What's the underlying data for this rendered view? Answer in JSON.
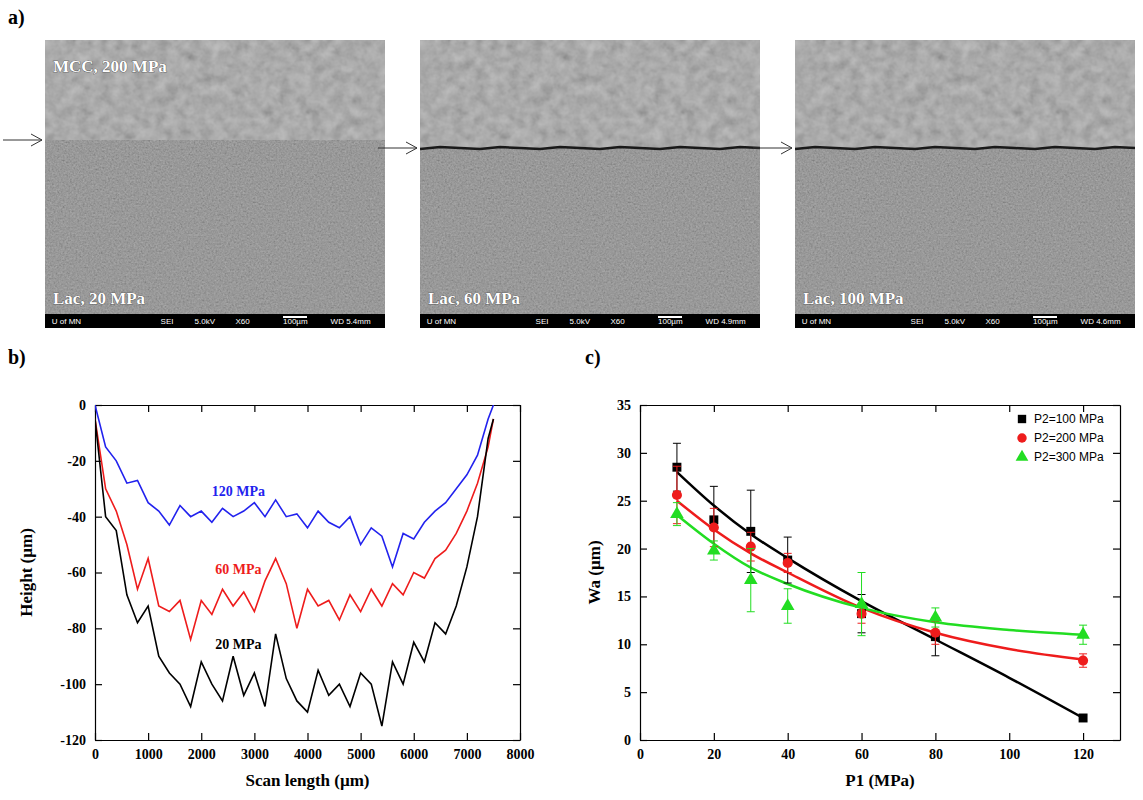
{
  "panel_a": {
    "label": "a)",
    "images": [
      {
        "top_label": "MCC, 200 MPa",
        "bottom_label": "Lac, 20 MPa",
        "info": [
          "U of MN",
          "SEI",
          "5.0kV",
          "X60",
          "100µm",
          "WD 5.4mm"
        ]
      },
      {
        "bottom_label": "Lac, 60 MPa",
        "info": [
          "U of MN",
          "SEI",
          "5.0kV",
          "X60",
          "100µm",
          "WD 4.9mm"
        ]
      },
      {
        "bottom_label": "Lac, 100 MPa",
        "info": [
          "U of MN",
          "SEI",
          "5.0kV",
          "X60",
          "100µm",
          "WD 4.6mm"
        ]
      }
    ]
  },
  "chart_data": [
    {
      "type": "line",
      "label": "b)",
      "x_label": "Scan length (µm)",
      "y_label": "Height (µm)",
      "xlim": [
        0,
        8000
      ],
      "xticks": [
        0,
        1000,
        2000,
        3000,
        4000,
        5000,
        6000,
        7000,
        8000
      ],
      "ylim": [
        -120,
        0
      ],
      "yticks": [
        -120,
        -100,
        -80,
        -60,
        -40,
        -20,
        0
      ],
      "grid": false,
      "x": [
        0,
        200,
        400,
        600,
        800,
        1000,
        1200,
        1400,
        1600,
        1800,
        2000,
        2200,
        2400,
        2600,
        2800,
        3000,
        3200,
        3400,
        3600,
        3800,
        4000,
        4200,
        4400,
        4600,
        4800,
        5000,
        5200,
        5400,
        5600,
        5800,
        6000,
        6200,
        6400,
        6600,
        6800,
        7000,
        7200,
        7400,
        7500
      ],
      "series": [
        {
          "name": "120 MPa",
          "color": "#2222ee",
          "values": [
            0,
            -15,
            -20,
            -28,
            -27,
            -35,
            -38,
            -43,
            -36,
            -40,
            -38,
            -42,
            -37,
            -40,
            -38,
            -35,
            -40,
            -34,
            -40,
            -39,
            -44,
            -38,
            -42,
            -44,
            -40,
            -50,
            -44,
            -47,
            -58,
            -46,
            -48,
            -42,
            -38,
            -35,
            -30,
            -25,
            -18,
            -5,
            0
          ]
        },
        {
          "name": "60 MPa",
          "color": "#ee1c1c",
          "values": [
            -5,
            -30,
            -38,
            -50,
            -66,
            -55,
            -72,
            -74,
            -70,
            -84,
            -70,
            -75,
            -66,
            -72,
            -67,
            -74,
            -63,
            -55,
            -64,
            -80,
            -66,
            -72,
            -70,
            -77,
            -68,
            -74,
            -66,
            -72,
            -64,
            -68,
            -60,
            -62,
            -55,
            -52,
            -46,
            -38,
            -28,
            -15,
            -5
          ]
        },
        {
          "name": "20 MPa",
          "color": "#000000",
          "values": [
            -5,
            -40,
            -45,
            -68,
            -78,
            -72,
            -90,
            -96,
            -100,
            -108,
            -92,
            -100,
            -106,
            -90,
            -104,
            -96,
            -108,
            -82,
            -98,
            -106,
            -110,
            -95,
            -104,
            -100,
            -108,
            -96,
            -100,
            -115,
            -92,
            -100,
            -85,
            -92,
            -78,
            -82,
            -72,
            -58,
            -40,
            -12,
            -5
          ]
        }
      ]
    },
    {
      "type": "scatter",
      "label": "c)",
      "x_label": "P1 (MPa)",
      "y_label": "Wa (µm)",
      "xlim": [
        0,
        130
      ],
      "xticks": [
        0,
        20,
        40,
        60,
        80,
        100,
        120
      ],
      "ylim": [
        0,
        35
      ],
      "yticks": [
        0,
        5,
        10,
        15,
        20,
        25,
        30,
        35
      ],
      "grid": false,
      "legend": "upper right",
      "x": [
        10,
        20,
        30,
        40,
        60,
        80,
        120
      ],
      "fit_x": [
        10,
        20,
        30,
        40,
        60,
        80,
        100,
        120
      ],
      "series": [
        {
          "name": "P2=100 MPa",
          "color": "#000000",
          "marker": "square",
          "values": [
            28.5,
            23,
            21.8,
            18.8,
            13.2,
            10.8,
            2.3
          ],
          "errors": [
            2.5,
            3.5,
            4.3,
            2.4,
            2.0,
            2.0,
            0.3
          ],
          "fit": [
            28,
            24.5,
            21.5,
            19,
            14.5,
            10.5,
            6.5,
            2.3
          ]
        },
        {
          "name": "P2=200 MPa",
          "color": "#ee1c1c",
          "marker": "circle",
          "values": [
            25.6,
            22.2,
            20.2,
            18.5,
            13.2,
            11.2,
            8.3
          ],
          "errors": [
            3,
            2,
            1.5,
            1,
            1,
            1.2,
            0.7
          ],
          "fit": [
            25,
            22,
            19.5,
            17.5,
            13.8,
            11.2,
            9.5,
            8.4
          ]
        },
        {
          "name": "P2=300 MPa",
          "color": "#22dd22",
          "marker": "triangle",
          "values": [
            23.6,
            19.8,
            16.7,
            14,
            14.2,
            12.8,
            11
          ],
          "errors": [
            1.2,
            1,
            3.3,
            1.8,
            3.3,
            1,
            1
          ],
          "fit": [
            23.5,
            20.5,
            18,
            16.3,
            13.8,
            12.3,
            11.5,
            11
          ]
        }
      ]
    }
  ]
}
